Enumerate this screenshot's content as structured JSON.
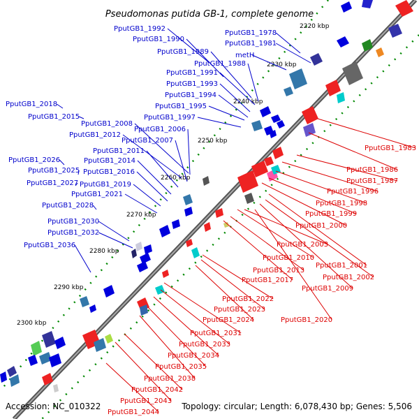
{
  "title": "Pseudomonas putida GB-1, complete genome",
  "footer": {
    "accession": "Accession: NC_010322",
    "topology": "Topology: circular; Length: 6,078,430 bp; Genes: 5,506"
  },
  "colors": {
    "forward_strand": "#0000ff",
    "reverse_strand": "#ff0000",
    "backbone": "#777777",
    "tick": "#008800"
  },
  "ticks": [
    "2220 kbp",
    "2230 kbp",
    "2240 kbp",
    "2250 kbp",
    "2260 kbp",
    "2270 kbp",
    "2280 kbp",
    "2290 kbp",
    "2300 kbp"
  ],
  "genes_forward": [
    "PputGB1_1992",
    "PputGB1_1990",
    "PputGB1_1978",
    "PputGB1_1981",
    "PputGB1_1989",
    "metH",
    "PputGB1_1988",
    "PputGB1_1991",
    "PputGB1_1993",
    "PputGB1_1994",
    "PputGB1_1995",
    "PputGB1_2018",
    "PputGB1_1997",
    "PputGB1_2015",
    "PputGB1_2008",
    "PputGB1_2006",
    "PputGB1_2012",
    "PputGB1_2007",
    "PputGB1_2011",
    "PputGB1_2026",
    "PputGB1_2014",
    "PputGB1_2025",
    "PputGB1_2016",
    "PputGB1_2027",
    "PputGB1_2019",
    "PputGB1_2021",
    "PputGB1_2028",
    "PputGB1_2030",
    "PputGB1_2032",
    "PputGB1_2036"
  ],
  "genes_reverse": [
    "PputGB1_1983",
    "PputGB1_1986",
    "PputGB1_1987",
    "PputGB1_1996",
    "PputGB1_1998",
    "PputGB1_1999",
    "PputGB1_2000",
    "PputGB1_2003",
    "PputGB1_2010",
    "PputGB1_2001",
    "PputGB1_2013",
    "PputGB1_2002",
    "PputGB1_2017",
    "PputGB1_2009",
    "PputGB1_2022",
    "PputGB1_2023",
    "PputGB1_2024",
    "PputGB1_2020",
    "PputGB1_2031",
    "PputGB1_2033",
    "PputGB1_2034",
    "PputGB1_2035",
    "PputGB1_2038",
    "PputGB1_2042",
    "PputGB1_2043",
    "PputGB1_2044"
  ]
}
